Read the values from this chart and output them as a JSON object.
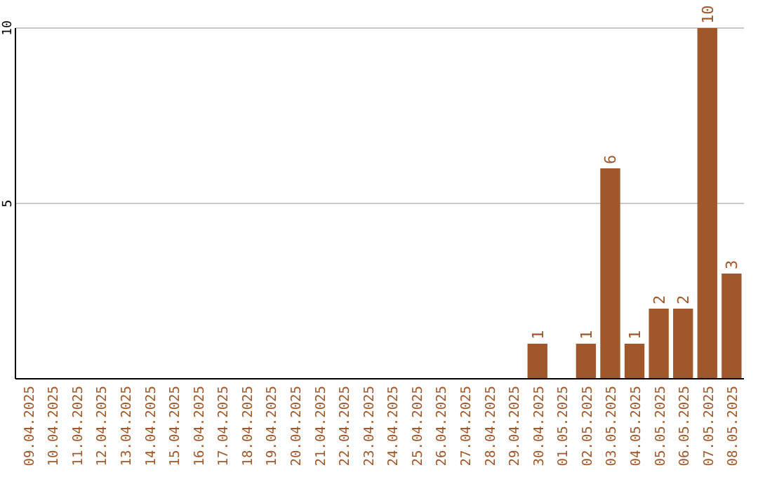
{
  "chart_data": {
    "type": "bar",
    "categories": [
      "09.04.2025",
      "10.04.2025",
      "11.04.2025",
      "12.04.2025",
      "13.04.2025",
      "14.04.2025",
      "15.04.2025",
      "16.04.2025",
      "17.04.2025",
      "18.04.2025",
      "19.04.2025",
      "20.04.2025",
      "21.04.2025",
      "22.04.2025",
      "23.04.2025",
      "24.04.2025",
      "25.04.2025",
      "26.04.2025",
      "27.04.2025",
      "28.04.2025",
      "29.04.2025",
      "30.04.2025",
      "01.05.2025",
      "02.05.2025",
      "03.05.2025",
      "04.05.2025",
      "05.05.2025",
      "06.05.2025",
      "07.05.2025",
      "08.05.2025"
    ],
    "values": [
      0,
      0,
      0,
      0,
      0,
      0,
      0,
      0,
      0,
      0,
      0,
      0,
      0,
      0,
      0,
      0,
      0,
      0,
      0,
      0,
      0,
      1,
      0,
      1,
      6,
      1,
      2,
      2,
      10,
      3
    ],
    "value_labels": [
      null,
      null,
      null,
      null,
      null,
      null,
      null,
      null,
      null,
      null,
      null,
      null,
      null,
      null,
      null,
      null,
      null,
      null,
      null,
      null,
      null,
      "1",
      null,
      "1",
      "6",
      "1",
      "2",
      "2",
      "10",
      "3"
    ],
    "color": "#a0572a",
    "ylim": [
      0,
      10
    ],
    "yticks": [
      5,
      10
    ],
    "grid": "y"
  }
}
